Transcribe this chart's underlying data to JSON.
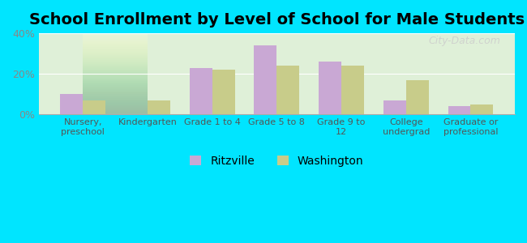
{
  "title": "School Enrollment by Level of School for Male Students",
  "categories": [
    "Nursery,\npreschool",
    "Kindergarten",
    "Grade 1 to 4",
    "Grade 5 to 8",
    "Grade 9 to\n12",
    "College\nundergrad",
    "Graduate or\nprofessional"
  ],
  "ritzville": [
    10,
    0,
    23,
    34,
    26,
    7,
    4
  ],
  "washington": [
    7,
    7,
    22,
    24,
    24,
    17,
    5
  ],
  "ritzville_color": "#c9a8d4",
  "washington_color": "#c8cc8a",
  "background_outer": "#00e5ff",
  "background_inner_top": "#e8f5e9",
  "background_inner_bottom": "#f5ffe8",
  "ylim": [
    0,
    40
  ],
  "yticks": [
    0,
    20,
    40
  ],
  "ytick_labels": [
    "0%",
    "20%",
    "40%"
  ],
  "legend_ritzville": "Ritzville",
  "legend_washington": "Washington",
  "title_fontsize": 14,
  "bar_width": 0.35
}
